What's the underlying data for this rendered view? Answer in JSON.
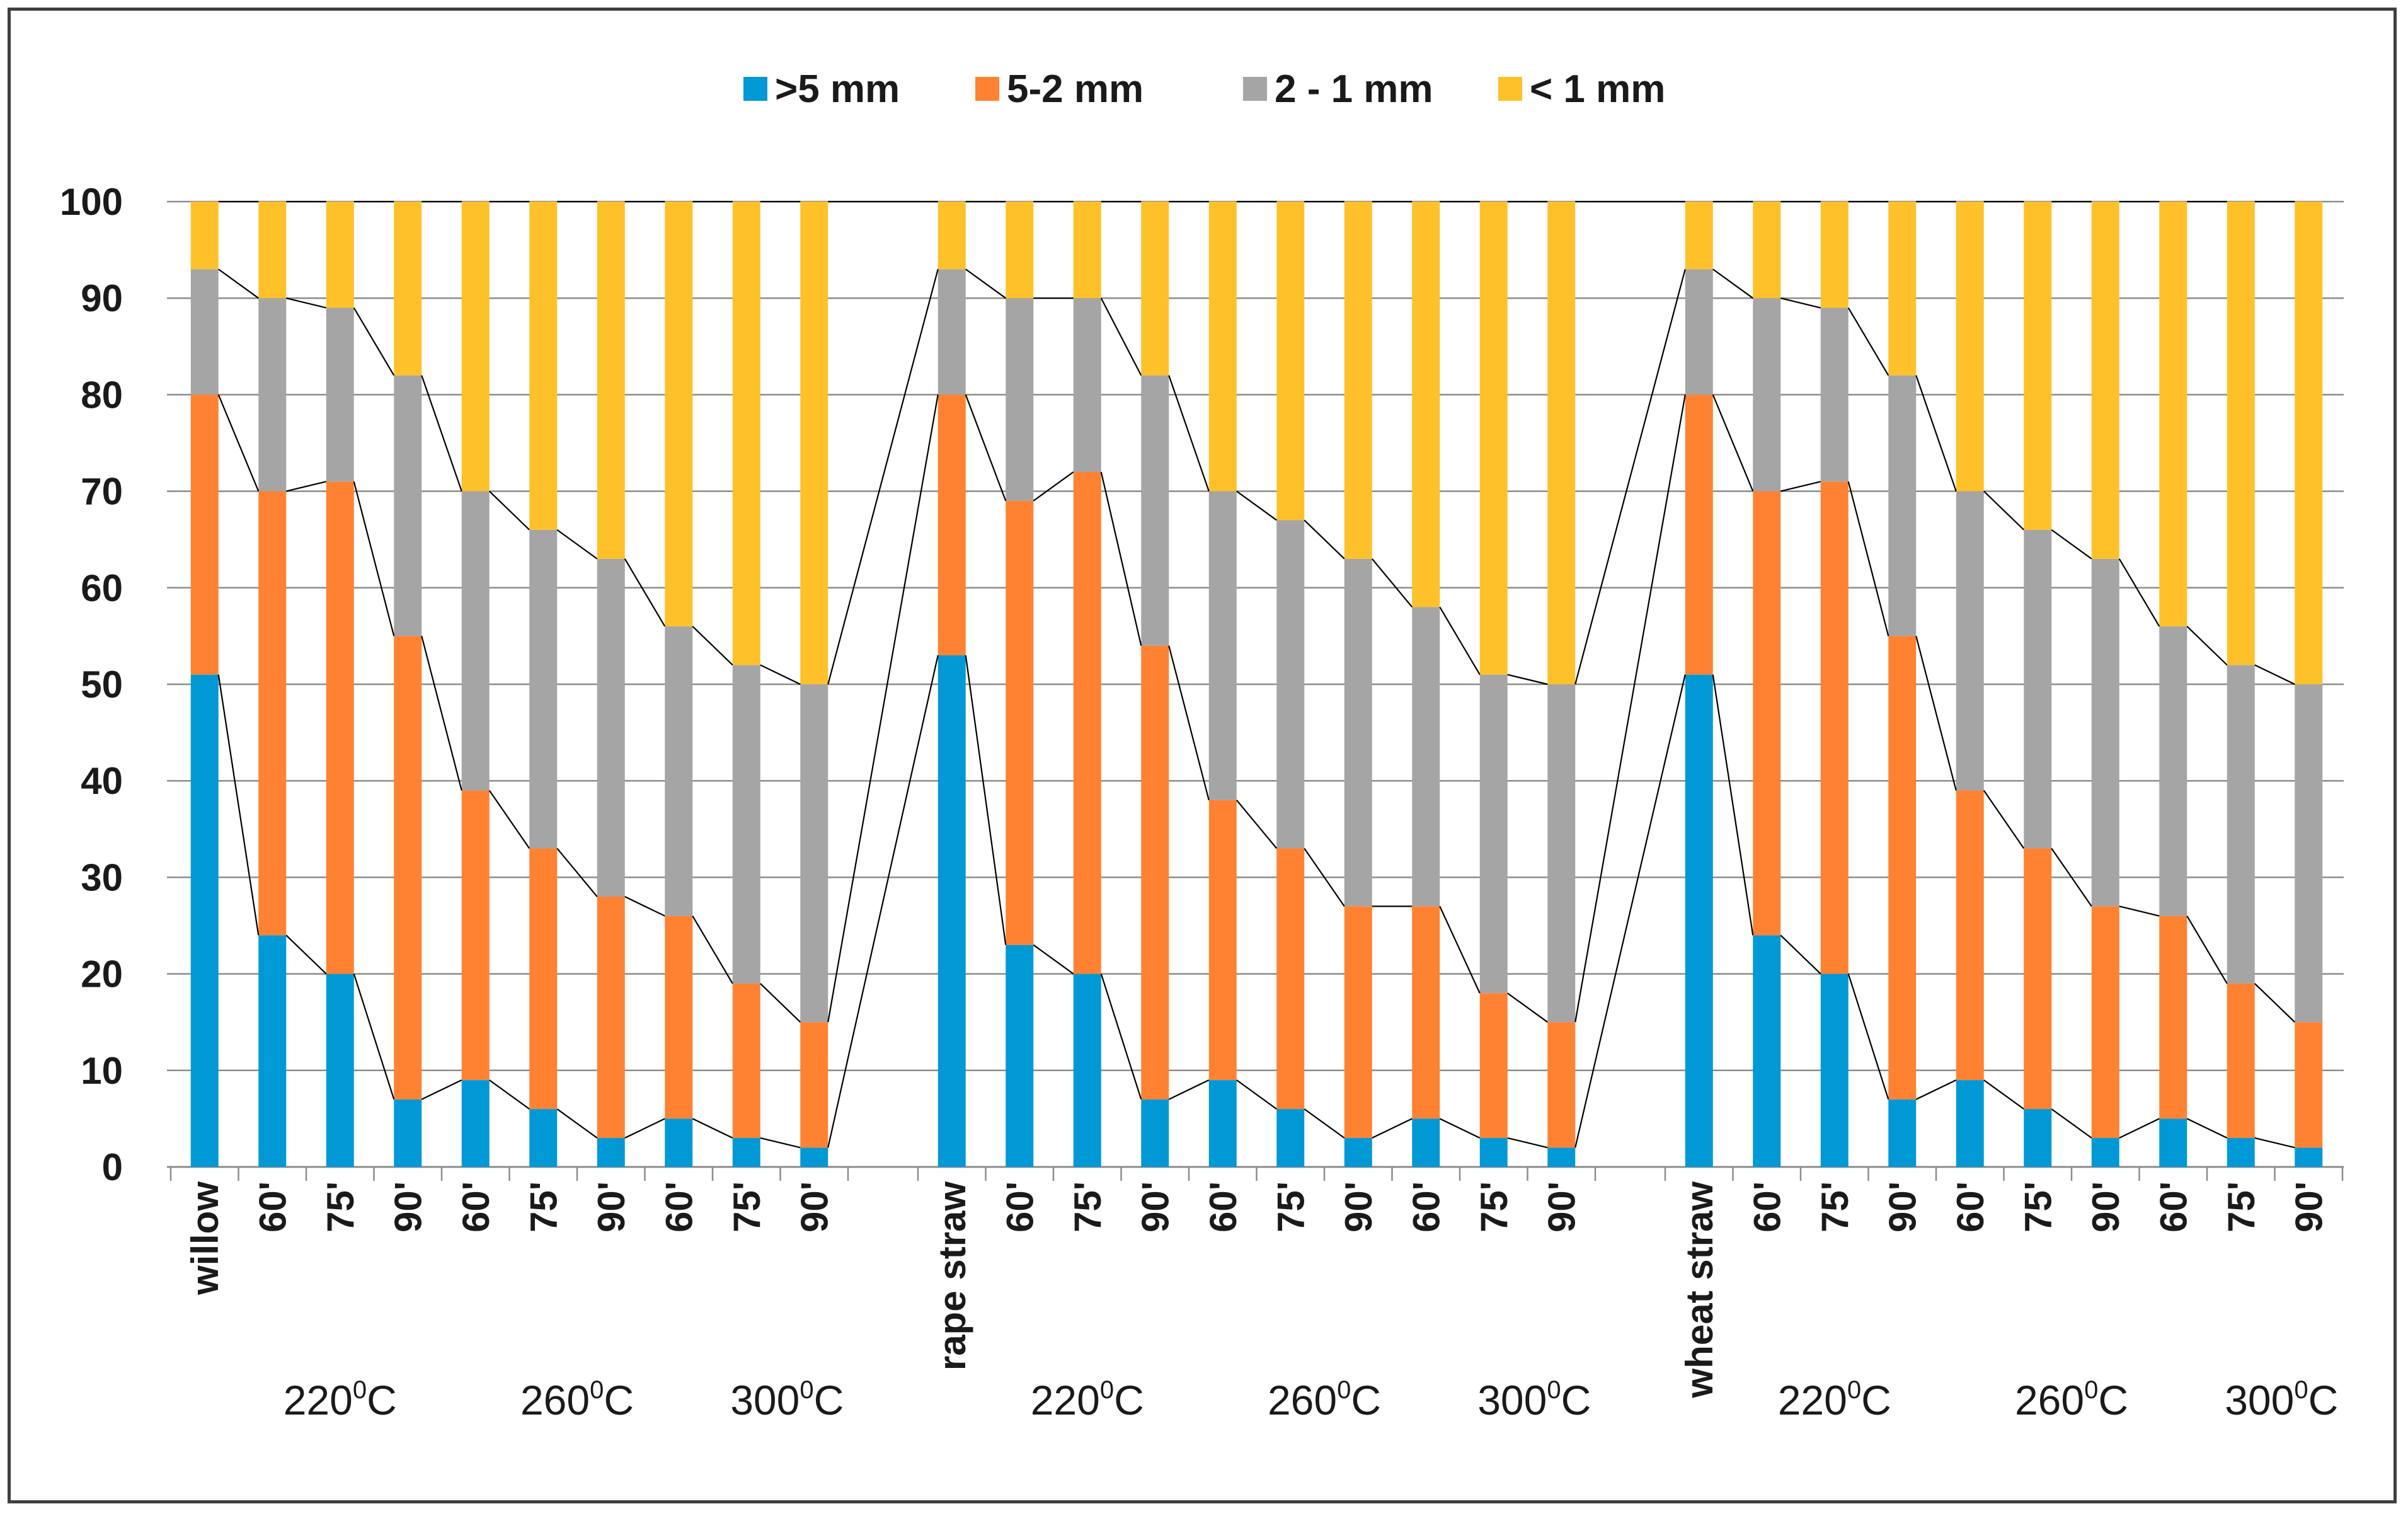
{
  "chart_data": {
    "type": "bar",
    "stacked": true,
    "title": "",
    "xlabel": "",
    "ylabel": "",
    "ylim": [
      0,
      100
    ],
    "yticks": [
      0,
      10,
      20,
      30,
      40,
      50,
      60,
      70,
      80,
      90,
      100
    ],
    "grid": true,
    "legend_position": "top-center",
    "series": [
      {
        "name": ">5 mm",
        "color": "#0099D6",
        "values": [
          51,
          24,
          20,
          7,
          9,
          6,
          3,
          5,
          3,
          2,
          53,
          23,
          20,
          7,
          9,
          6,
          3,
          5,
          3,
          2,
          51,
          24,
          20,
          7,
          9,
          6,
          3,
          5,
          3,
          2
        ]
      },
      {
        "name": "5-2 mm",
        "color": "#FF8232",
        "values": [
          29,
          46,
          51,
          48,
          30,
          27,
          25,
          21,
          16,
          13,
          27,
          46,
          52,
          47,
          29,
          27,
          24,
          22,
          15,
          13,
          29,
          46,
          51,
          48,
          30,
          27,
          24,
          21,
          16,
          13
        ]
      },
      {
        "name": "2 - 1 mm",
        "color": "#A5A5A5",
        "values": [
          13,
          20,
          18,
          27,
          31,
          33,
          35,
          30,
          33,
          35,
          13,
          21,
          18,
          28,
          32,
          34,
          36,
          31,
          33,
          35,
          13,
          20,
          18,
          27,
          31,
          33,
          36,
          30,
          33,
          35
        ]
      },
      {
        "name": "< 1 mm",
        "color": "#FFC12A",
        "values": [
          7,
          10,
          11,
          18,
          30,
          34,
          37,
          44,
          48,
          50,
          7,
          10,
          10,
          18,
          30,
          33,
          37,
          42,
          49,
          50,
          7,
          10,
          11,
          18,
          30,
          34,
          37,
          44,
          48,
          50
        ]
      }
    ],
    "groups": [
      {
        "material": "willow",
        "categories": [
          "willow",
          "60'",
          "75'",
          "90'",
          "60'",
          "75'",
          "90'",
          "60'",
          "75'",
          "90'"
        ],
        "temps": [
          "220",
          "260",
          "300"
        ]
      },
      {
        "material": "rape straw",
        "categories": [
          "rape straw",
          "60'",
          "75'",
          "90'",
          "60'",
          "75'",
          "90'",
          "60'",
          "75'",
          "90'"
        ],
        "temps": [
          "220",
          "260",
          "300"
        ]
      },
      {
        "material": "wheat straw",
        "categories": [
          "wheat straw",
          "60'",
          "75'",
          "90'",
          "60'",
          "75'",
          "90'",
          "60'",
          "75'",
          "90'"
        ],
        "temps": [
          "220",
          "260",
          "300"
        ]
      }
    ],
    "temp_degree": "0",
    "temp_unit": "C",
    "series_lines_color": "#000000"
  }
}
